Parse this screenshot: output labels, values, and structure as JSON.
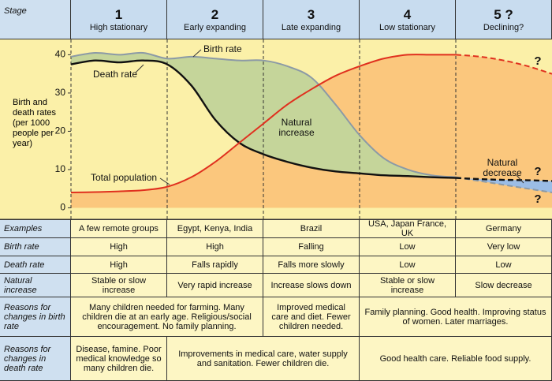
{
  "stage_header": "Stage",
  "stages": [
    {
      "number": "1",
      "name": "High stationary"
    },
    {
      "number": "2",
      "name": "Early expanding"
    },
    {
      "number": "3",
      "name": "Late expanding"
    },
    {
      "number": "4",
      "name": "Low stationary"
    },
    {
      "number": "5 ?",
      "name": "Declining?"
    }
  ],
  "chart_data": {
    "type": "line",
    "y_label": "Birth and death rates (per 1000 people per year)",
    "x": [
      0,
      0.25,
      0.5,
      0.75,
      1,
      1.25,
      1.5,
      1.75,
      2,
      2.25,
      2.5,
      2.75,
      3,
      3.25,
      3.5,
      3.75,
      4,
      4.25,
      4.5,
      4.75,
      5
    ],
    "xlim": [
      0,
      5
    ],
    "ylim": [
      -3,
      44
    ],
    "yticks": [
      0,
      10,
      20,
      30,
      40
    ],
    "projection_from": 4,
    "series": [
      {
        "name": "Birth rate",
        "color": "#8c9aa6",
        "values": [
          39.5,
          40.5,
          40,
          40.5,
          39,
          39.5,
          39,
          38.5,
          38.5,
          37,
          34,
          27,
          19,
          13,
          10,
          8.5,
          8,
          7,
          6,
          5,
          4
        ]
      },
      {
        "name": "Death rate",
        "color": "#111111",
        "values": [
          37.5,
          38.5,
          38,
          38.5,
          37.5,
          32,
          23,
          17,
          14,
          12,
          10.5,
          9.5,
          9,
          8.5,
          8.3,
          8,
          7.8,
          7.5,
          7.3,
          7.2,
          7
        ]
      },
      {
        "name": "Total population",
        "color": "#e0301e",
        "values": [
          4,
          4.1,
          4.3,
          4.6,
          5.5,
          8,
          12,
          17,
          22,
          27,
          31,
          34.5,
          37,
          39,
          40,
          40,
          40,
          39.5,
          38.5,
          37,
          35
        ]
      }
    ],
    "fills": {
      "population": "#fbc77d",
      "increase": "#c5d59a",
      "decrease": "#9bbde6"
    },
    "annotations": [
      "Natural increase",
      "Natural decrease",
      "?"
    ]
  },
  "rows": [
    {
      "label": "Examples",
      "cells": [
        "A few remote groups",
        "Egypt, Kenya, India",
        "Brazil",
        "USA, Japan France, UK",
        "Germany"
      ]
    },
    {
      "label": "Birth rate",
      "cells": [
        "High",
        "High",
        "Falling",
        "Low",
        "Very low"
      ]
    },
    {
      "label": "Death rate",
      "cells": [
        "High",
        "Falls rapidly",
        "Falls more slowly",
        "Low",
        "Low"
      ]
    },
    {
      "label": "Natural increase",
      "cells": [
        "Stable or slow increase",
        "Very rapid increase",
        "Increase slows down",
        "Stable or slow increase",
        "Slow decrease"
      ]
    },
    {
      "label": "Reasons for changes in birth rate",
      "cells": [
        "Many children needed for farming. Many children die at an early age. Religious/social encouragement. No family planning.",
        "Improved medical care and diet. Fewer children needed.",
        "Family planning. Good health. Improving status of women. Later marriages."
      ]
    },
    {
      "label": "Reasons for changes in death rate",
      "cells": [
        "Disease, famine. Poor medical knowledge so many children die.",
        "Improvements in medical care, water supply and sanitation. Fewer children die.",
        "Good health care. Reliable food supply."
      ]
    }
  ]
}
